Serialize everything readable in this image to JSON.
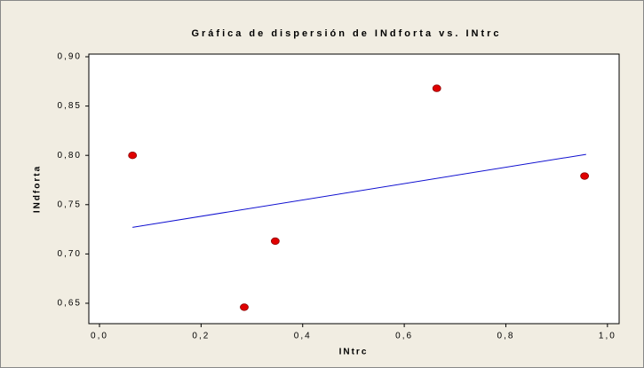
{
  "chart_data": {
    "type": "scatter",
    "title": "Gráfica de dispersión de INdforta vs. INtrc",
    "x_label": "INtrc",
    "y_label": "INdforta",
    "x": [
      0.065,
      0.285,
      0.346,
      0.664,
      0.955
    ],
    "values": [
      0.8,
      0.646,
      0.713,
      0.868,
      0.779
    ],
    "color": "#e00000",
    "fit_line": {
      "x": [
        0.065,
        0.958
      ],
      "values": [
        0.727,
        0.801
      ],
      "color": "#1010d0"
    },
    "xlim": [
      -0.021,
      1.023
    ],
    "xticks": [
      {
        "value": 0,
        "label": "0,0"
      },
      {
        "value": 0.2,
        "label": "0,2"
      },
      {
        "value": 0.4,
        "label": "0,4"
      },
      {
        "value": 0.6,
        "label": "0,6"
      },
      {
        "value": 0.8,
        "label": "0,8"
      },
      {
        "value": 1,
        "label": "1,0"
      }
    ],
    "ylim": [
      0.6293,
      0.9027
    ],
    "yticks": [
      {
        "value": 0.65,
        "label": "0,65"
      },
      {
        "value": 0.7,
        "label": "0,70"
      },
      {
        "value": 0.75,
        "label": "0,75"
      },
      {
        "value": 0.8,
        "label": "0,80"
      },
      {
        "value": 0.85,
        "label": "0,85"
      },
      {
        "value": 0.9,
        "label": "0,90"
      }
    ]
  }
}
